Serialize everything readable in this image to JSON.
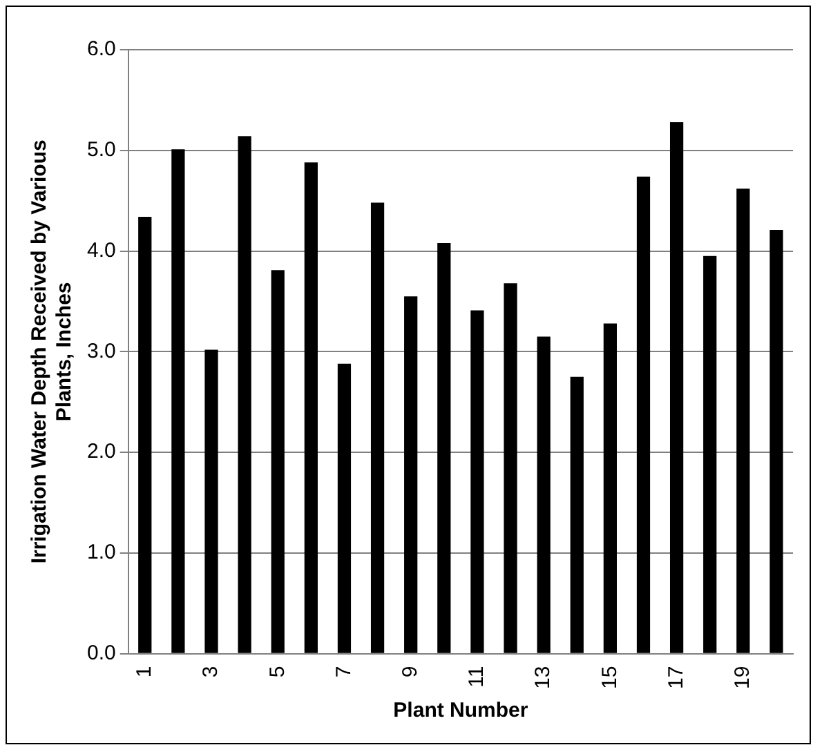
{
  "chart_data": {
    "type": "bar",
    "xlabel": "Plant Number",
    "ylabel": "Irrigation Water Depth Received by Various Plants, Inches",
    "categories": [
      "1",
      null,
      "3",
      null,
      "5",
      null,
      "7",
      null,
      "9",
      null,
      "11",
      null,
      "13",
      null,
      "15",
      null,
      "17",
      null,
      "19",
      null
    ],
    "values": [
      4.34,
      5.01,
      3.02,
      5.14,
      3.81,
      4.88,
      2.88,
      4.48,
      3.55,
      4.08,
      3.41,
      3.68,
      3.15,
      2.75,
      3.28,
      4.74,
      5.28,
      3.95,
      4.62,
      4.21
    ],
    "color": "#000000",
    "ylim": [
      0,
      6
    ],
    "yticks": [
      {
        "value": 0,
        "label": "0.0"
      },
      {
        "value": 1,
        "label": "1.0"
      },
      {
        "value": 2,
        "label": "2.0"
      },
      {
        "value": 3,
        "label": "3.0"
      },
      {
        "value": 4,
        "label": "4.0"
      },
      {
        "value": 5,
        "label": "5.0"
      },
      {
        "value": 6,
        "label": "6.0"
      }
    ],
    "grid": "y"
  }
}
